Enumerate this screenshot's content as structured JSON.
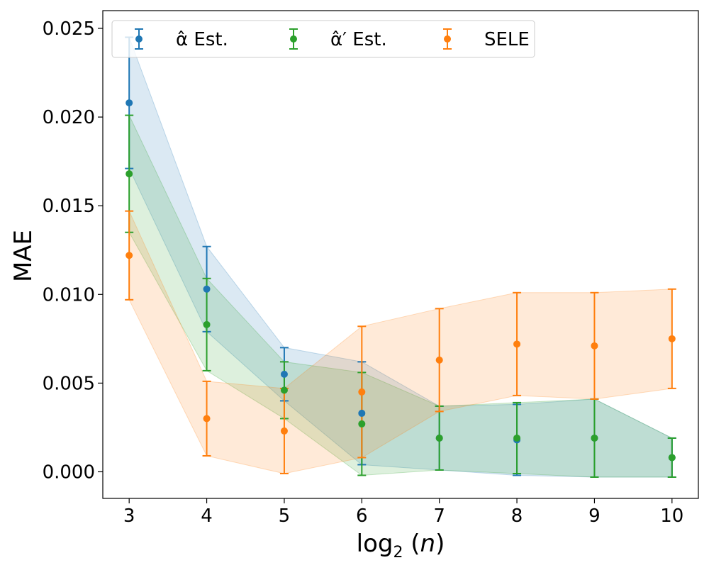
{
  "chart_data": {
    "type": "scatter",
    "title": "",
    "xlabel": "log₂(n)",
    "ylabel": "MAE",
    "x": [
      3,
      4,
      5,
      6,
      7,
      8,
      9,
      10
    ],
    "xlim": [
      2.66,
      10.34
    ],
    "ylim": [
      -0.0015,
      0.026
    ],
    "x_ticks": [
      3,
      4,
      5,
      6,
      7,
      8,
      9,
      10
    ],
    "y_ticks": [
      0.0,
      0.005,
      0.01,
      0.015,
      0.02,
      0.025
    ],
    "y_tick_labels": [
      "0.000",
      "0.005",
      "0.010",
      "0.015",
      "0.020",
      "0.025"
    ],
    "x_tick_labels": [
      "3",
      "4",
      "5",
      "6",
      "7",
      "8",
      "9",
      "10"
    ],
    "grid": false,
    "legend_position": "top-left",
    "series": [
      {
        "name": "α̂ Est.",
        "color": "#1f77b4",
        "values": [
          0.0208,
          0.0103,
          0.0055,
          0.0033,
          0.0019,
          0.0018,
          0.0019,
          0.0008
        ],
        "errors": [
          0.0037,
          0.0024,
          0.0015,
          0.0029,
          0.0018,
          0.002,
          0.0022,
          0.0011
        ]
      },
      {
        "name": "α̂′ Est.",
        "color": "#2ca02c",
        "values": [
          0.0168,
          0.0083,
          0.0046,
          0.0027,
          0.0019,
          0.0019,
          0.0019,
          0.0008
        ],
        "errors": [
          0.0033,
          0.0026,
          0.0016,
          0.0029,
          0.0018,
          0.002,
          0.0022,
          0.0011
        ]
      },
      {
        "name": "SELE",
        "color": "#ff7f0e",
        "values": [
          0.0122,
          0.003,
          0.0023,
          0.0045,
          0.0063,
          0.0072,
          0.0071,
          0.0075
        ],
        "errors": [
          0.0025,
          0.0021,
          0.0024,
          0.0037,
          0.0029,
          0.0029,
          0.003,
          0.0028
        ]
      }
    ]
  }
}
